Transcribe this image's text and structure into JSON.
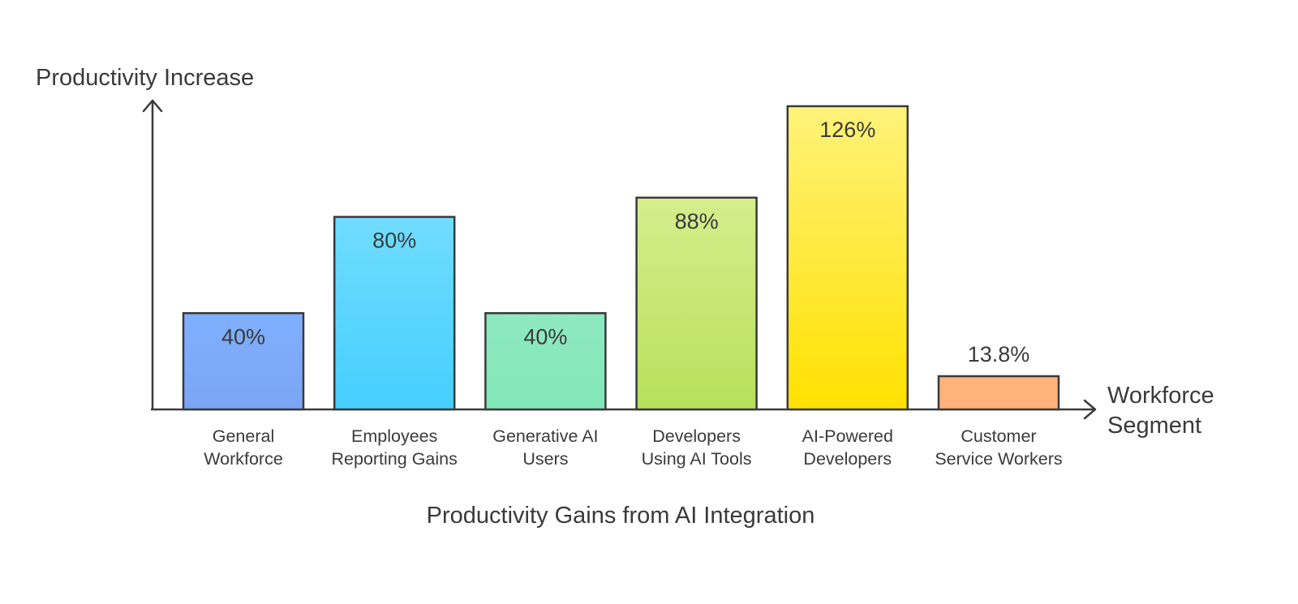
{
  "chart_data": {
    "type": "bar",
    "title": "Productivity Gains from AI Integration",
    "ylabel": "Productivity Increase",
    "xlabel": "Workforce Segment",
    "categories": [
      "General Workforce",
      "Employees Reporting Gains",
      "Generative AI Users",
      "Developers Using AI Tools",
      "AI-Powered Developers",
      "Customer Service Workers"
    ],
    "category_lines": [
      [
        "General",
        "Workforce"
      ],
      [
        "Employees",
        "Reporting Gains"
      ],
      [
        "Generative AI",
        "Users"
      ],
      [
        "Developers",
        "Using AI Tools"
      ],
      [
        "AI-Powered",
        "Developers"
      ],
      [
        "Customer",
        "Service Workers"
      ]
    ],
    "values": [
      40,
      80,
      40,
      88,
      126,
      13.8
    ],
    "value_labels": [
      "40%",
      "80%",
      "40%",
      "88%",
      "126%",
      "13.8%"
    ],
    "ylim": [
      0,
      126
    ],
    "grid": false,
    "legend": "none",
    "colors": [
      [
        "#7fb0ff",
        "#7ba5f5"
      ],
      [
        "#71dcff",
        "#45cfff"
      ],
      [
        "#8fe8c0",
        "#82e8b8"
      ],
      [
        "#d4ee8c",
        "#b8e05a"
      ],
      [
        "#fff27a",
        "#ffe100"
      ],
      [
        "#ffb27a",
        "#ffb27a"
      ]
    ]
  }
}
